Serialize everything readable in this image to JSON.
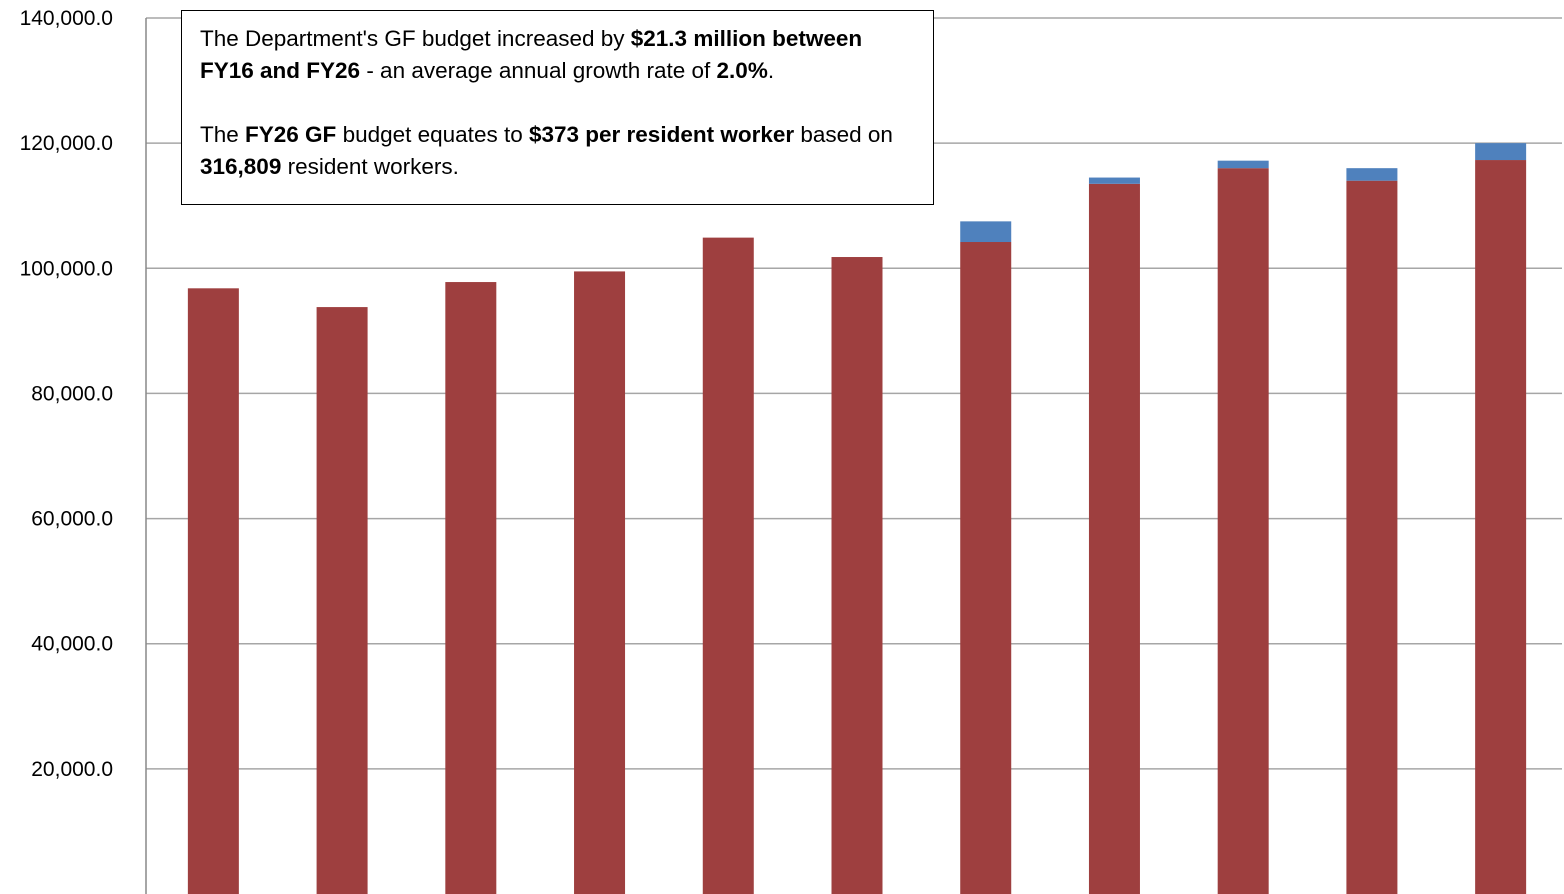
{
  "chart_data": {
    "type": "bar",
    "stacked": true,
    "categories": [
      "",
      "",
      "",
      "",
      "",
      "",
      "",
      "",
      "",
      "",
      ""
    ],
    "series": [
      {
        "color": "#9e3f3f",
        "values": [
          96800,
          93800,
          97800,
          99500,
          104900,
          101800,
          104200,
          113500,
          116000,
          114000,
          117300
        ]
      },
      {
        "color": "#4f81bd",
        "values": [
          0,
          0,
          0,
          0,
          0,
          0,
          3300,
          1000,
          1200,
          2000,
          2700
        ]
      }
    ],
    "ylim": [
      0,
      140000
    ],
    "yticks": [
      {
        "value": 20000,
        "label": "20,000.0"
      },
      {
        "value": 40000,
        "label": "40,000.0"
      },
      {
        "value": 60000,
        "label": "60,000.0"
      },
      {
        "value": 80000,
        "label": "80,000.0"
      },
      {
        "value": 100000,
        "label": "100,000.0"
      },
      {
        "value": 120000,
        "label": "120,000.0"
      },
      {
        "value": 140000,
        "label": "140,000.0"
      }
    ],
    "grid": true,
    "title": "",
    "xlabel": "",
    "ylabel": ""
  },
  "annotation": {
    "p1_t1": "The Department's GF budget increased by ",
    "p1_b1": "$21.3 million between FY16 and FY26",
    "p1_t2": " - an average annual growth rate of ",
    "p1_b2": "2.0%",
    "p1_t3": ".",
    "p2_t1": "The ",
    "p2_b1": "FY26 GF",
    "p2_t2": " budget equates to ",
    "p2_b2": "$373 per resident worker",
    "p2_t3": " based on ",
    "p2_b3": "316,809",
    "p2_t4": " resident workers."
  }
}
